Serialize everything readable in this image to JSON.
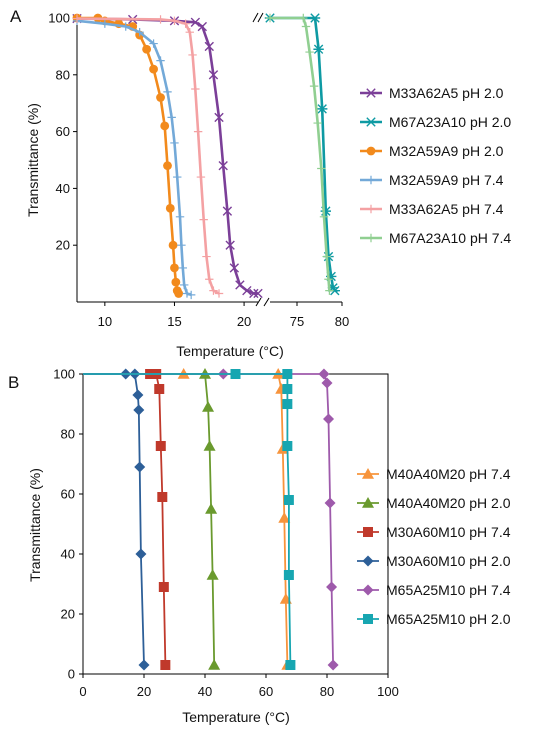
{
  "chart_data": [
    {
      "panel": "A",
      "type": "line",
      "xlabel": "Temperature (°C)",
      "ylabel": "Transmittance (%)",
      "ylim": [
        0,
        100
      ],
      "x_segments": [
        {
          "xlim": [
            8,
            21
          ],
          "ticks": [
            10,
            15,
            20
          ]
        },
        {
          "xlim": [
            72,
            80
          ],
          "ticks": [
            75,
            80
          ]
        }
      ],
      "yticks": [
        20,
        40,
        60,
        80,
        100
      ],
      "legend_position": "right",
      "series": [
        {
          "name": "M33A62A5 pH 2.0",
          "color": "#7b3f98",
          "marker": "x",
          "points": [
            [
              8,
              99.8
            ],
            [
              12,
              99.5
            ],
            [
              15,
              99
            ],
            [
              16.5,
              98.5
            ],
            [
              17,
              97
            ],
            [
              17.5,
              90
            ],
            [
              17.8,
              80
            ],
            [
              18.2,
              65
            ],
            [
              18.5,
              48
            ],
            [
              18.8,
              32
            ],
            [
              19,
              20
            ],
            [
              19.3,
              12
            ],
            [
              19.7,
              6
            ],
            [
              20.2,
              4
            ],
            [
              20.7,
              3
            ],
            [
              21,
              3
            ]
          ]
        },
        {
          "name": "M67A23A10 pH 2.0",
          "color": "#0e9aa3",
          "marker": "star",
          "points": [
            [
              72,
              100
            ],
            [
              77,
              100
            ],
            [
              77.4,
              89
            ],
            [
              77.8,
              68
            ],
            [
              78.2,
              32
            ],
            [
              78.5,
              16
            ],
            [
              78.8,
              9
            ],
            [
              79,
              5
            ],
            [
              79.2,
              4
            ]
          ]
        },
        {
          "name": "M32A59A9 pH 2.0",
          "color": "#f28a1c",
          "marker": "circle",
          "points": [
            [
              8,
              100
            ],
            [
              9.5,
              100
            ],
            [
              10,
              99
            ],
            [
              11,
              98
            ],
            [
              12,
              97
            ],
            [
              12.5,
              94
            ],
            [
              13,
              89
            ],
            [
              13.5,
              82
            ],
            [
              14,
              72
            ],
            [
              14.3,
              62
            ],
            [
              14.5,
              48
            ],
            [
              14.7,
              33
            ],
            [
              14.9,
              20
            ],
            [
              15,
              12
            ],
            [
              15.1,
              7
            ],
            [
              15.2,
              4
            ],
            [
              15.3,
              3
            ]
          ]
        },
        {
          "name": "M32A59A9 pH 7.4",
          "color": "#73a9d8",
          "marker": "plus",
          "points": [
            [
              8,
              99
            ],
            [
              10,
              98
            ],
            [
              11.5,
              97
            ],
            [
              12.5,
              95
            ],
            [
              13.5,
              91
            ],
            [
              14,
              85
            ],
            [
              14.5,
              74
            ],
            [
              14.8,
              65
            ],
            [
              15,
              56
            ],
            [
              15.2,
              44
            ],
            [
              15.4,
              30
            ],
            [
              15.5,
              20
            ],
            [
              15.6,
              12
            ],
            [
              15.7,
              6
            ],
            [
              15.9,
              3
            ],
            [
              16.2,
              2.5
            ]
          ]
        },
        {
          "name": "M33A62A5 pH 7.4",
          "color": "#f4a1a3",
          "marker": "plus",
          "points": [
            [
              8,
              99.8
            ],
            [
              14,
              99.5
            ],
            [
              15,
              99
            ],
            [
              15.8,
              98
            ],
            [
              16.1,
              95
            ],
            [
              16.3,
              87
            ],
            [
              16.5,
              75
            ],
            [
              16.7,
              60
            ],
            [
              16.9,
              44
            ],
            [
              17.1,
              29
            ],
            [
              17.3,
              16
            ],
            [
              17.5,
              8
            ],
            [
              17.8,
              4
            ],
            [
              18.2,
              3
            ]
          ]
        },
        {
          "name": "M67A23A10 pH 7.4",
          "color": "#90cf91",
          "marker": "plus",
          "points": [
            [
              72,
              100
            ],
            [
              75.7,
              100
            ],
            [
              76,
              97
            ],
            [
              76.4,
              88
            ],
            [
              76.9,
              76
            ],
            [
              77.3,
              63
            ],
            [
              77.7,
              47
            ],
            [
              78,
              30
            ],
            [
              78.3,
              16
            ],
            [
              78.5,
              8
            ],
            [
              78.6,
              4
            ]
          ]
        }
      ]
    },
    {
      "panel": "B",
      "type": "line",
      "xlabel": "Temperature (°C)",
      "ylabel": "Transmittance (%)",
      "xlim": [
        0,
        100
      ],
      "ylim": [
        0,
        100
      ],
      "xticks": [
        0,
        20,
        40,
        60,
        80,
        100
      ],
      "yticks": [
        0,
        20,
        40,
        60,
        80,
        100
      ],
      "legend_position": "right",
      "series": [
        {
          "name": "M40A40M20 pH 7.4",
          "color": "#f7943c",
          "marker": "triangle",
          "points": [
            [
              0,
              100
            ],
            [
              33,
              100
            ],
            [
              64,
              100
            ],
            [
              65,
              95
            ],
            [
              65.5,
              75
            ],
            [
              66,
              52
            ],
            [
              66.5,
              25
            ],
            [
              67,
              3
            ]
          ]
        },
        {
          "name": "M40A40M20 pH 2.0",
          "color": "#6a9a2e",
          "marker": "triangle",
          "points": [
            [
              0,
              100
            ],
            [
              40,
              100
            ],
            [
              41,
              89
            ],
            [
              41.5,
              76
            ],
            [
              42,
              55
            ],
            [
              42.5,
              33
            ],
            [
              43,
              3
            ]
          ]
        },
        {
          "name": "M30A60M10 pH 7.4",
          "color": "#c0392b",
          "marker": "square",
          "points": [
            [
              0,
              100
            ],
            [
              22,
              100
            ],
            [
              24,
              100
            ],
            [
              25,
              95
            ],
            [
              25.5,
              76
            ],
            [
              26,
              59
            ],
            [
              26.5,
              29
            ],
            [
              27,
              3
            ]
          ]
        },
        {
          "name": "M30A60M10 pH 2.0",
          "color": "#2d5f98",
          "marker": "diamond",
          "points": [
            [
              0,
              100
            ],
            [
              14,
              100
            ],
            [
              17,
              100
            ],
            [
              18,
              93
            ],
            [
              18.3,
              88
            ],
            [
              18.6,
              69
            ],
            [
              19,
              40
            ],
            [
              20,
              3
            ]
          ]
        },
        {
          "name": "M65A25M10 pH 7.4",
          "color": "#9e5aab",
          "marker": "diamond",
          "points": [
            [
              0,
              100
            ],
            [
              46,
              100
            ],
            [
              79,
              100
            ],
            [
              80,
              97
            ],
            [
              80.5,
              85
            ],
            [
              81,
              57
            ],
            [
              81.5,
              29
            ],
            [
              82,
              3
            ]
          ]
        },
        {
          "name": "M65A25M10 pH 2.0",
          "color": "#17a6b1",
          "marker": "square",
          "points": [
            [
              0,
              100
            ],
            [
              50,
              100
            ],
            [
              67,
              100
            ],
            [
              67,
              95
            ],
            [
              67,
              90
            ],
            [
              67,
              76
            ],
            [
              67.5,
              58
            ],
            [
              67.5,
              33
            ],
            [
              68,
              3
            ]
          ]
        }
      ]
    }
  ],
  "panel_labels": [
    "A",
    "B"
  ]
}
